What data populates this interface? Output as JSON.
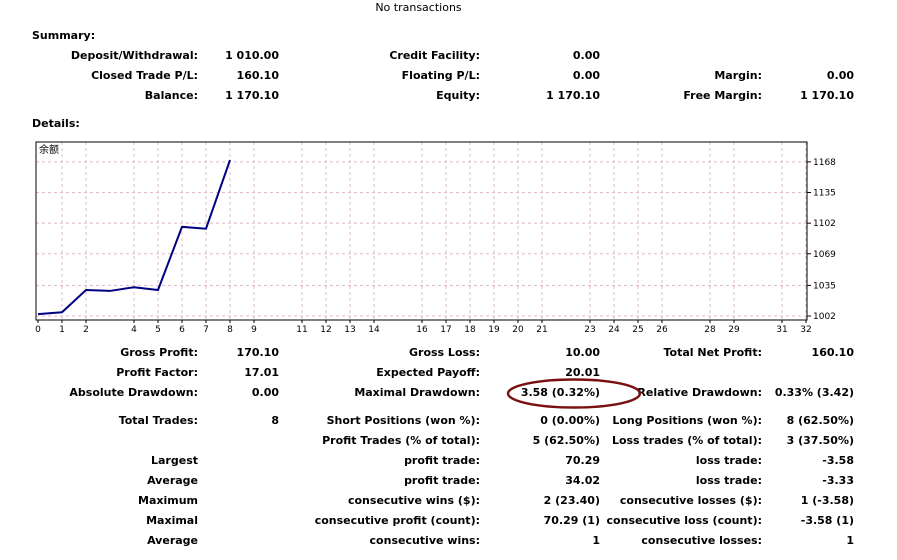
{
  "header": "No transactions",
  "summary": {
    "title": "Summary:",
    "deposit_label": "Deposit/Withdrawal:",
    "deposit_value": "1 010.00",
    "credit_label": "Credit Facility:",
    "credit_value": "0.00",
    "closed_label": "Closed Trade P/L:",
    "closed_value": "160.10",
    "floating_label": "Floating P/L:",
    "floating_value": "0.00",
    "margin_label": "Margin:",
    "margin_value": "0.00",
    "balance_label": "Balance:",
    "balance_value": "1 170.10",
    "equity_label": "Equity:",
    "equity_value": "1 170.10",
    "free_margin_label": "Free Margin:",
    "free_margin_value": "1 170.10"
  },
  "details": {
    "title": "Details:",
    "gross_profit_label": "Gross Profit:",
    "gross_profit_value": "170.10",
    "gross_loss_label": "Gross Loss:",
    "gross_loss_value": "10.00",
    "total_net_label": "Total Net Profit:",
    "total_net_value": "160.10",
    "profit_factor_label": "Profit Factor:",
    "profit_factor_value": "17.01",
    "expected_payoff_label": "Expected Payoff:",
    "expected_payoff_value": "20.01",
    "abs_dd_label": "Absolute Drawdown:",
    "abs_dd_value": "0.00",
    "max_dd_label": "Maximal Drawdown:",
    "max_dd_value": "3.58 (0.32%)",
    "rel_dd_label": "Relative Drawdown:",
    "rel_dd_value": "0.33% (3.42)",
    "total_trades_label": "Total Trades:",
    "total_trades_value": "8",
    "short_label": "Short Positions (won %):",
    "short_value": "0 (0.00%)",
    "long_label": "Long Positions (won %):",
    "long_value": "8 (62.50%)",
    "profit_trades_label": "Profit Trades (% of total):",
    "profit_trades_value": "5 (62.50%)",
    "loss_trades_label": "Loss trades (% of total):",
    "loss_trades_value": "3 (37.50%)",
    "largest_label": "Largest",
    "largest_profit_label": "profit trade:",
    "largest_profit_value": "70.29",
    "largest_loss_label": "loss trade:",
    "largest_loss_value": "-3.58",
    "average_label": "Average",
    "average_profit_label": "profit trade:",
    "average_profit_value": "34.02",
    "average_loss_label": "loss trade:",
    "average_loss_value": "-3.33",
    "maximum_label": "Maximum",
    "max_wins_label": "consecutive wins ($):",
    "max_wins_value": "2 (23.40)",
    "max_losses_label": "consecutive losses ($):",
    "max_losses_value": "1 (-3.58)",
    "maximal_label": "Maximal",
    "maximal_profit_label": "consecutive profit (count):",
    "maximal_profit_value": "70.29 (1)",
    "maximal_loss_label": "consecutive loss (count):",
    "maximal_loss_value": "-3.58 (1)",
    "avg_cons_label": "Average",
    "avg_wins_label": "consecutive wins:",
    "avg_wins_value": "1",
    "avg_losses_label": "consecutive losses:",
    "avg_losses_value": "1"
  },
  "chart_data": {
    "type": "line",
    "title": "余额",
    "x": [
      0,
      1,
      2,
      3,
      4,
      5,
      6,
      7,
      8
    ],
    "series": [
      {
        "values": [
          1004,
          1006,
          1030,
          1029,
          1033,
          1030,
          1098,
          1096,
          1170
        ]
      }
    ],
    "xticks": [
      0,
      1,
      2,
      4,
      5,
      6,
      7,
      8,
      9,
      11,
      12,
      13,
      14,
      16,
      17,
      18,
      19,
      20,
      21,
      23,
      24,
      25,
      26,
      28,
      29,
      31,
      32
    ],
    "yticks": [
      1002,
      1035,
      1069,
      1102,
      1135,
      1168
    ],
    "xlim": [
      0,
      32
    ],
    "ylim": [
      1002,
      1170
    ],
    "grid": true,
    "line_color": "#000080",
    "grid_color": "#e0b8c8"
  },
  "highlight_color": "#7a1010"
}
